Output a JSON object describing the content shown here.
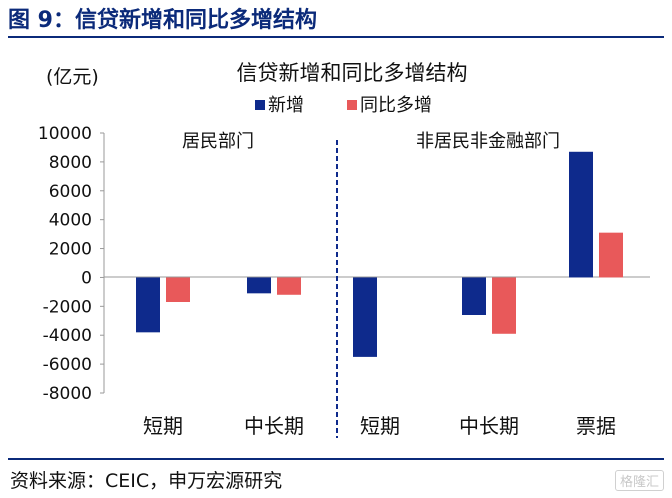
{
  "header": {
    "title": "图 9：信贷新增和同比多增结构"
  },
  "footer": {
    "source": "资料来源：CEIC，申万宏源研究",
    "watermark": "格隆汇"
  },
  "chart_data": {
    "type": "bar",
    "title": "信贷新增和同比多增结构",
    "unit_label": "(亿元)",
    "categories": [
      "短期",
      "中长期",
      "短期",
      "中长期",
      "票据"
    ],
    "groups": [
      {
        "label": "居民部门",
        "categories": [
          0,
          1
        ]
      },
      {
        "label": "非居民非金融部门",
        "categories": [
          2,
          3,
          4
        ]
      }
    ],
    "series": [
      {
        "name": "新增",
        "color": "#0e2a8c",
        "values": [
          -3800,
          -1100,
          -5500,
          -2600,
          8700
        ]
      },
      {
        "name": "同比多增",
        "color": "#e8595a",
        "values": [
          -1700,
          -1200,
          null,
          -3900,
          3100
        ]
      }
    ],
    "ylim": [
      -8000,
      10000
    ],
    "yticks": [
      10000,
      8000,
      6000,
      4000,
      2000,
      0,
      -2000,
      -4000,
      -6000,
      -8000
    ],
    "legend_position": "top",
    "grid": false
  }
}
